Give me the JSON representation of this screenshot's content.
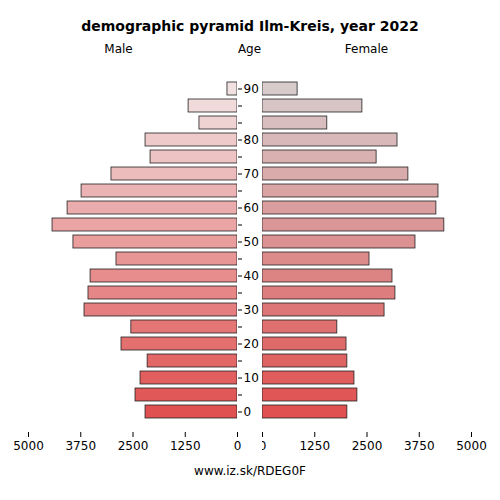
{
  "chart_data": {
    "type": "pyramid",
    "title": "demographic pyramid Ilm-Kreis, year 2022",
    "ylabel": "Age",
    "caption": "www.iz.sk/RDEG0F",
    "orientation": "horizontal",
    "categories": [
      "0",
      null,
      "10",
      null,
      "20",
      null,
      "30",
      null,
      "40",
      null,
      "50",
      null,
      "60",
      null,
      "70",
      null,
      "80",
      null,
      null,
      "90"
    ],
    "series": [
      {
        "name": "Male",
        "color": "#e05050",
        "values": [
          2200,
          2440,
          2320,
          2150,
          2775,
          2540,
          3660,
          3565,
          3515,
          2895,
          3925,
          4425,
          4065,
          3730,
          3015,
          2080,
          2200,
          910,
          1170,
          240
        ]
      },
      {
        "name": "Female",
        "color": "#e05050",
        "values": [
          2030,
          2270,
          2200,
          2030,
          2010,
          1790,
          2920,
          3180,
          3110,
          2560,
          3660,
          4350,
          4160,
          4210,
          3490,
          2730,
          3230,
          1550,
          2390,
          840
        ]
      }
    ],
    "xlim": [
      0,
      5000
    ],
    "xticks": [
      0,
      1250,
      2500,
      3750,
      5000
    ],
    "grid": false
  }
}
